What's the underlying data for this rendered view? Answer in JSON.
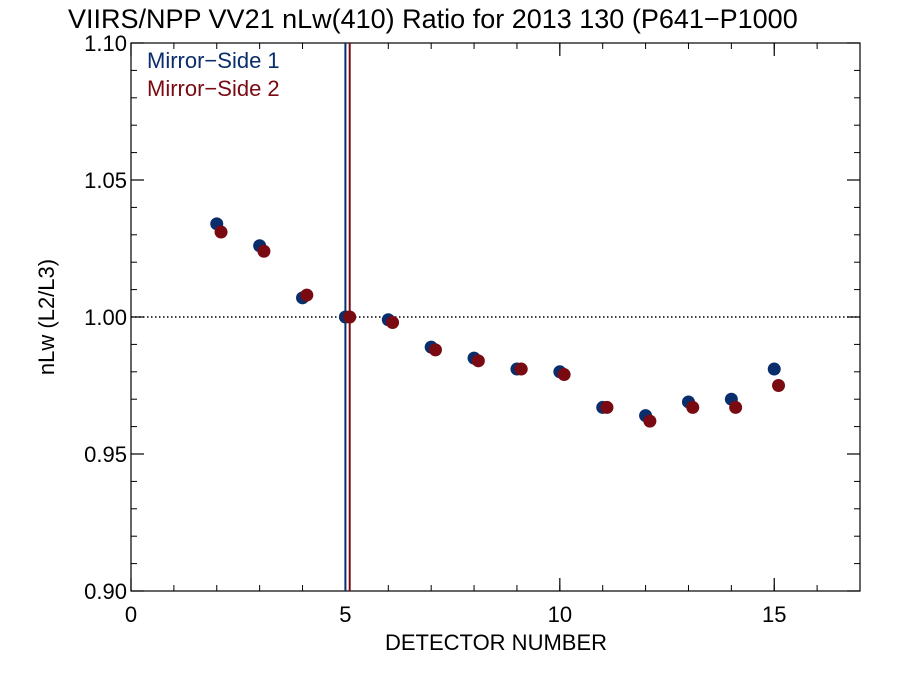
{
  "chart_data": {
    "type": "scatter",
    "title": "VIIRS/NPP VV21 nLw(410) Ratio for 2013 130 (P641−P1000",
    "xlabel": "DETECTOR NUMBER",
    "ylabel": "nLw (L2/L3)",
    "xlim": [
      0,
      17
    ],
    "ylim": [
      0.9,
      1.1
    ],
    "x_ticks": [
      0,
      5,
      10,
      15
    ],
    "x_tick_labels": [
      "0",
      "5",
      "10",
      "15"
    ],
    "y_ticks": [
      0.9,
      0.95,
      1.0,
      1.05,
      1.1
    ],
    "y_tick_labels": [
      "0.90",
      "0.95",
      "1.00",
      "1.05",
      "1.10"
    ],
    "reference_line": {
      "y": 1.0,
      "style": "dotted"
    },
    "vertical_lines": [
      {
        "x": 5.0,
        "color": "#0a2d6b"
      },
      {
        "x": 5.1,
        "color": "#7a0a12"
      }
    ],
    "legend_position": "top-left",
    "grid": false,
    "series": [
      {
        "name": "Mirror−Side 1",
        "color": "#0a2d6b",
        "x": [
          2,
          3,
          4,
          5,
          6,
          7,
          8,
          9,
          10,
          11,
          12,
          13,
          14,
          15
        ],
        "y": [
          1.034,
          1.026,
          1.007,
          1.0,
          0.999,
          0.989,
          0.985,
          0.981,
          0.98,
          0.967,
          0.964,
          0.969,
          0.97,
          0.981
        ]
      },
      {
        "name": "Mirror−Side 2",
        "color": "#7a0a12",
        "x": [
          2.1,
          3.1,
          4.1,
          5.1,
          6.1,
          7.1,
          8.1,
          9.1,
          10.1,
          11.1,
          12.1,
          13.1,
          14.1,
          15.1
        ],
        "y": [
          1.031,
          1.024,
          1.008,
          1.0,
          0.998,
          0.988,
          0.984,
          0.981,
          0.979,
          0.967,
          0.962,
          0.967,
          0.967,
          0.975
        ]
      }
    ]
  }
}
